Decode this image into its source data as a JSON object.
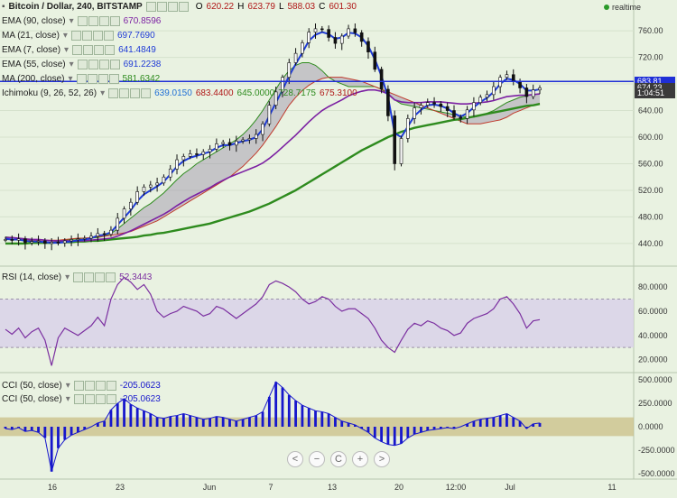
{
  "header": {
    "title": "Bitcoin / Dollar, 240, BITSTAMP",
    "ohlc": [
      {
        "k": "O",
        "v": "620.22"
      },
      {
        "k": "H",
        "v": "623.79"
      },
      {
        "k": "L",
        "v": "588.03"
      },
      {
        "k": "C",
        "v": "601.30"
      }
    ],
    "realtime": "realtime"
  },
  "indicators": [
    {
      "name": "EMA (90, close)",
      "value": "670.8596",
      "color": "#7b1fa2"
    },
    {
      "name": "MA (21, close)",
      "value": "697.7690",
      "color": "#1f3bd6"
    },
    {
      "name": "EMA (7, close)",
      "value": "641.4849",
      "color": "#1f3bd6"
    },
    {
      "name": "EMA (55, close)",
      "value": "691.2238",
      "color": "#1f3bd6"
    },
    {
      "name": "MA (200, close)",
      "value": "581.6342",
      "color": "#2e8b1e"
    }
  ],
  "ichimoku": {
    "name": "Ichimoku (9, 26, 52, 26)",
    "values": [
      {
        "v": "639.0150",
        "color": "#1f6fd6"
      },
      {
        "v": "683.4400",
        "color": "#b01717"
      },
      {
        "v": "645.0000",
        "color": "#2e8b1e"
      },
      {
        "v": "728.7175",
        "color": "#2e8b1e"
      },
      {
        "v": "675.3100",
        "color": "#b01717"
      }
    ]
  },
  "rsi_legend": {
    "name": "RSI (14, close)",
    "value": "52.3443"
  },
  "cci_legend": [
    {
      "name": "CCI (50, close)",
      "value": "-205.0623"
    },
    {
      "name": "CCI (50, close)",
      "value": "-205.0623"
    }
  ],
  "price_tags": [
    {
      "label": "683.81",
      "color": "#1f2fd6",
      "price": 683.81
    },
    {
      "label": "674.23",
      "color": "#3a3a3a",
      "price": 674.23
    },
    {
      "label": "1:04:51",
      "color": "#3a3a3a",
      "price": 666.5
    }
  ],
  "nav_buttons": [
    {
      "name": "scroll-left-button",
      "glyph": "<"
    },
    {
      "name": "zoom-out-button",
      "glyph": "−"
    },
    {
      "name": "reset-button",
      "glyph": "C"
    },
    {
      "name": "zoom-in-button",
      "glyph": "+"
    },
    {
      "name": "scroll-right-button",
      "glyph": ">"
    }
  ],
  "colors": {
    "background": "#e9f2e1",
    "candle": "#111111",
    "ema7": "#1f3bd6",
    "ema90": "#7b1fa2",
    "ma200": "#2e8b1e",
    "cloud": "#9a8fa8",
    "rsi": "#7b2fa0",
    "cci": "#1616cc",
    "cci_band": "#c9bf85",
    "rsi_band": "#d8d0ea"
  },
  "chart_data": [
    {
      "type": "line",
      "panel": "price",
      "ylim": [
        410,
        790
      ],
      "y_ticks": [
        440,
        480,
        520,
        560,
        600,
        640,
        680,
        720,
        760
      ],
      "y_tick_labels": [
        "440.00",
        "480.00",
        "520.00",
        "560.00",
        "600.00",
        "640.00",
        "680.00",
        "720.00",
        "760.00"
      ],
      "x_ticks": [
        "16",
        "23",
        "Jun",
        "7",
        "13",
        "20",
        "12:00",
        "Jul",
        "11"
      ],
      "horizontal_line": 683.81,
      "series": [
        {
          "id": "close",
          "values": [
            446,
            445,
            447,
            441,
            443,
            444,
            440,
            442,
            441,
            444,
            446,
            447,
            448,
            451,
            455,
            454,
            460,
            478,
            492,
            502,
            518,
            525,
            528,
            531,
            540,
            552,
            566,
            571,
            575,
            574,
            578,
            582,
            590,
            592,
            588,
            594,
            596,
            598,
            604,
            620,
            648,
            668,
            690,
            712,
            726,
            742,
            758,
            763,
            762,
            750,
            741,
            752,
            763,
            757,
            744,
            728,
            702,
            672,
            632,
            560,
            598,
            628,
            644,
            648,
            652,
            650,
            646,
            640,
            630,
            628,
            641,
            652,
            660,
            664,
            676,
            690,
            694,
            684,
            674,
            661,
            671,
            674
          ]
        },
        {
          "id": "ema7",
          "values": [
            447,
            446,
            446,
            444,
            443,
            443,
            442,
            441,
            441,
            442,
            443,
            445,
            446,
            448,
            452,
            453,
            457,
            468,
            479,
            490,
            504,
            514,
            520,
            526,
            533,
            544,
            556,
            564,
            569,
            572,
            575,
            578,
            584,
            588,
            588,
            591,
            594,
            596,
            600,
            612,
            632,
            652,
            671,
            692,
            710,
            727,
            745,
            754,
            758,
            755,
            748,
            750,
            757,
            756,
            750,
            737,
            717,
            692,
            660,
            606,
            600,
            616,
            632,
            641,
            648,
            649,
            647,
            643,
            636,
            631,
            636,
            645,
            653,
            659,
            668,
            680,
            688,
            686,
            680,
            670,
            670,
            672
          ]
        },
        {
          "id": "ema90",
          "values": [
            449,
            449,
            448,
            447,
            446,
            446,
            445,
            444,
            444,
            444,
            444,
            444,
            444,
            445,
            446,
            447,
            448,
            451,
            455,
            459,
            464,
            469,
            474,
            479,
            484,
            490,
            497,
            503,
            509,
            514,
            519,
            524,
            530,
            535,
            540,
            544,
            548,
            552,
            556,
            561,
            568,
            576,
            585,
            594,
            603,
            613,
            623,
            632,
            640,
            646,
            651,
            656,
            662,
            666,
            669,
            671,
            671,
            669,
            665,
            656,
            653,
            652,
            652,
            652,
            653,
            653,
            653,
            652,
            651,
            650,
            650,
            651,
            652,
            653,
            655,
            658,
            661,
            662,
            663,
            663,
            664,
            665
          ]
        },
        {
          "id": "ma200",
          "values": [
            440,
            440,
            440,
            440,
            441,
            441,
            441,
            441,
            442,
            442,
            442,
            443,
            443,
            444,
            444,
            445,
            446,
            447,
            448,
            449,
            450,
            452,
            453,
            455,
            456,
            458,
            460,
            462,
            464,
            466,
            468,
            470,
            473,
            476,
            479,
            482,
            485,
            488,
            492,
            496,
            500,
            505,
            510,
            515,
            520,
            526,
            532,
            538,
            544,
            550,
            556,
            562,
            568,
            574,
            580,
            585,
            590,
            595,
            600,
            604,
            608,
            611,
            614,
            616,
            618,
            620,
            622,
            624,
            626,
            627,
            629,
            631,
            633,
            635,
            637,
            639,
            641,
            643,
            645,
            647,
            648,
            650
          ]
        },
        {
          "id": "cloud_a",
          "values": [
            450,
            449,
            448,
            447,
            446,
            446,
            445,
            444,
            444,
            445,
            446,
            447,
            448,
            448,
            449,
            451,
            455,
            462,
            470,
            478,
            486,
            494,
            500,
            508,
            516,
            526,
            536,
            545,
            552,
            560,
            566,
            572,
            578,
            584,
            590,
            596,
            604,
            614,
            626,
            640,
            656,
            672,
            688,
            700,
            708,
            712,
            712,
            708,
            700,
            690,
            684,
            680,
            676,
            676,
            676,
            676,
            676,
            672,
            664,
            656,
            650,
            648,
            646,
            644,
            642,
            640,
            638,
            636,
            634,
            632,
            630,
            630,
            632,
            636,
            640,
            646,
            652,
            656,
            660,
            662,
            664,
            665
          ]
        },
        {
          "id": "cloud_b",
          "values": [
            446,
            446,
            446,
            446,
            445,
            445,
            445,
            445,
            445,
            446,
            447,
            448,
            448,
            449,
            450,
            451,
            452,
            454,
            456,
            458,
            462,
            466,
            470,
            474,
            480,
            486,
            492,
            498,
            504,
            510,
            516,
            522,
            528,
            534,
            540,
            548,
            556,
            566,
            576,
            588,
            602,
            616,
            632,
            648,
            660,
            670,
            678,
            684,
            688,
            690,
            690,
            690,
            688,
            686,
            684,
            680,
            676,
            672,
            668,
            664,
            660,
            656,
            652,
            648,
            644,
            640,
            636,
            632,
            628,
            624,
            620,
            620,
            620,
            622,
            624,
            626,
            630,
            636,
            640,
            644,
            648,
            651
          ]
        }
      ]
    },
    {
      "type": "line",
      "panel": "rsi",
      "title": "RSI (14, close)",
      "ylim": [
        10,
        95
      ],
      "y_ticks": [
        20,
        40,
        60,
        80
      ],
      "y_tick_labels": [
        "20.0000",
        "40.0000",
        "60.0000",
        "80.0000"
      ],
      "band": [
        30,
        70
      ],
      "series": [
        {
          "id": "rsi",
          "values": [
            45,
            41,
            46,
            38,
            43,
            46,
            36,
            15,
            38,
            46,
            43,
            40,
            44,
            48,
            55,
            48,
            70,
            82,
            88,
            84,
            78,
            82,
            74,
            60,
            55,
            58,
            60,
            64,
            62,
            60,
            56,
            58,
            64,
            62,
            58,
            54,
            58,
            62,
            66,
            72,
            82,
            85,
            83,
            80,
            76,
            70,
            66,
            68,
            72,
            70,
            64,
            60,
            62,
            62,
            58,
            54,
            46,
            36,
            30,
            26,
            36,
            45,
            50,
            48,
            52,
            50,
            46,
            44,
            40,
            42,
            50,
            54,
            56,
            58,
            62,
            70,
            72,
            66,
            58,
            46,
            52,
            53
          ]
        }
      ]
    },
    {
      "type": "bar",
      "panel": "cci",
      "title": "CCI (50, close)",
      "ylim": [
        -560,
        560
      ],
      "y_ticks": [
        -500,
        -250,
        0,
        250,
        500
      ],
      "y_tick_labels": [
        "-500.0000",
        "-250.0000",
        "0.0000",
        "250.0000",
        "500.0000"
      ],
      "band": [
        -100,
        100
      ],
      "series": [
        {
          "id": "cci",
          "values": [
            -20,
            -30,
            -10,
            -50,
            -40,
            -60,
            -120,
            -480,
            -230,
            -140,
            -90,
            -60,
            -30,
            0,
            40,
            60,
            180,
            250,
            300,
            240,
            200,
            170,
            140,
            100,
            90,
            110,
            120,
            140,
            120,
            100,
            80,
            90,
            110,
            100,
            80,
            60,
            80,
            100,
            120,
            160,
            320,
            480,
            420,
            340,
            280,
            230,
            200,
            170,
            160,
            140,
            100,
            60,
            40,
            20,
            -20,
            -60,
            -120,
            -160,
            -190,
            -200,
            -180,
            -120,
            -80,
            -60,
            -40,
            -30,
            -20,
            -10,
            -20,
            0,
            30,
            60,
            80,
            90,
            100,
            120,
            140,
            100,
            60,
            -20,
            30,
            40
          ]
        }
      ]
    }
  ]
}
